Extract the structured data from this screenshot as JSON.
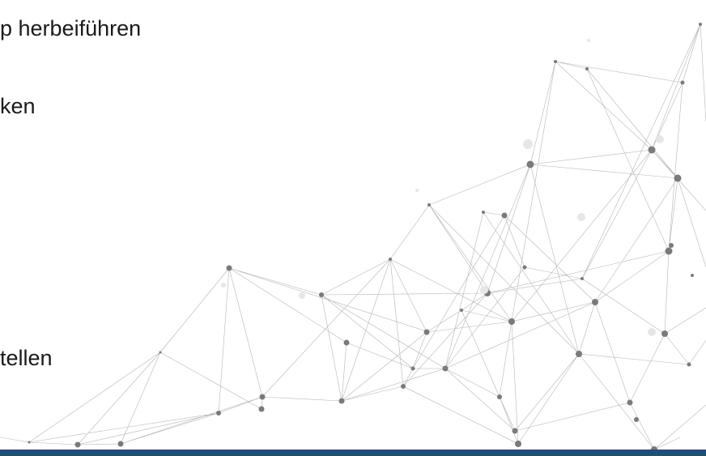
{
  "slide": {
    "lines": [
      "p herbeiführen",
      "ken",
      "tellen"
    ]
  }
}
